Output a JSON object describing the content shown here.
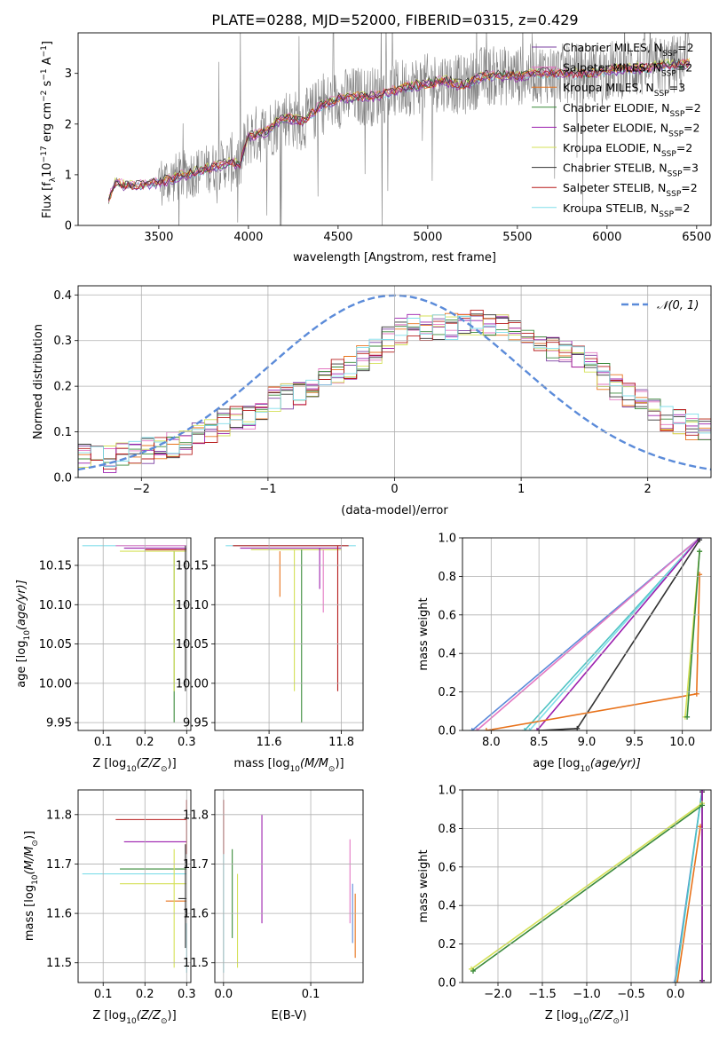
{
  "figure_title": "PLATE=0288, MJD=52000, FIBERID=0315, z=0.429",
  "colors": {
    "chabrier_miles": "#7b3fa0",
    "salpeter_miles": "#e377c2",
    "kroupa_miles": "#e8731c",
    "chabrier_elodie": "#3a8a3a",
    "salpeter_elodie": "#9b1fae",
    "kroupa_elodie": "#d4e157",
    "chabrier_stelib": "#333333",
    "salpeter_stelib": "#b71c1c",
    "kroupa_stelib": "#80deea",
    "data": "#808080",
    "normal": "#5b8bd9",
    "c1": "#5b8bd9",
    "c2": "#e377c2",
    "c3": "#4fc3c3"
  },
  "chart_data": [
    {
      "id": "spectrum",
      "type": "line",
      "title": "",
      "xlabel": "wavelength [Angstrom, rest frame]",
      "ylabel_parts": [
        "Flux [f",
        "λ",
        "10",
        "−17",
        " erg cm",
        "−2",
        " s",
        "−1",
        " A",
        "−1",
        "]"
      ],
      "xlim": [
        3050,
        6580
      ],
      "ylim": [
        0,
        3.8
      ],
      "xticks": [
        3500,
        4000,
        4500,
        5000,
        5500,
        6000,
        6500
      ],
      "yticks": [
        0,
        1,
        2,
        3
      ],
      "legend_position": "right",
      "legend": [
        {
          "main": "Chabrier MILES, N",
          "sub": "SSP",
          "tail": "=2",
          "color_key": "chabrier_miles"
        },
        {
          "main": "Salpeter MILES, N",
          "sub": "SSP",
          "tail": "=2",
          "color_key": "salpeter_miles"
        },
        {
          "main": "Kroupa MILES, N",
          "sub": "SSP",
          "tail": "=3",
          "color_key": "kroupa_miles"
        },
        {
          "main": "Chabrier ELODIE, N",
          "sub": "SSP",
          "tail": "=2",
          "color_key": "chabrier_elodie"
        },
        {
          "main": "Salpeter ELODIE, N",
          "sub": "SSP",
          "tail": "=2",
          "color_key": "salpeter_elodie"
        },
        {
          "main": "Kroupa ELODIE, N",
          "sub": "SSP",
          "tail": "=2",
          "color_key": "kroupa_elodie"
        },
        {
          "main": "Chabrier STELIB, N",
          "sub": "SSP",
          "tail": "=3",
          "color_key": "chabrier_stelib"
        },
        {
          "main": "Salpeter STELIB, N",
          "sub": "SSP",
          "tail": "=2",
          "color_key": "salpeter_stelib"
        },
        {
          "main": "Kroupa STELIB, N",
          "sub": "SSP",
          "tail": "=2",
          "color_key": "kroupa_stelib"
        }
      ],
      "data_x_range": [
        3220,
        6460
      ],
      "model_keypoints": [
        [
          3220,
          0.5
        ],
        [
          3260,
          0.88
        ],
        [
          3300,
          0.8
        ],
        [
          3400,
          0.8
        ],
        [
          3500,
          0.85
        ],
        [
          3600,
          0.95
        ],
        [
          3700,
          1.05
        ],
        [
          3800,
          1.15
        ],
        [
          3900,
          1.25
        ],
        [
          3950,
          1.2
        ],
        [
          4000,
          1.75
        ],
        [
          4100,
          1.85
        ],
        [
          4200,
          2.15
        ],
        [
          4300,
          2.05
        ],
        [
          4400,
          2.35
        ],
        [
          4500,
          2.5
        ],
        [
          4600,
          2.55
        ],
        [
          4700,
          2.55
        ],
        [
          4800,
          2.65
        ],
        [
          4900,
          2.75
        ],
        [
          5000,
          2.8
        ],
        [
          5100,
          2.85
        ],
        [
          5200,
          2.75
        ],
        [
          5300,
          2.95
        ],
        [
          5400,
          2.95
        ],
        [
          5500,
          2.95
        ],
        [
          5600,
          3.0
        ],
        [
          5700,
          3.0
        ],
        [
          5800,
          3.0
        ],
        [
          5900,
          3.0
        ],
        [
          6000,
          3.05
        ],
        [
          6100,
          3.1
        ],
        [
          6200,
          3.1
        ],
        [
          6300,
          3.15
        ],
        [
          6460,
          3.2
        ]
      ]
    },
    {
      "id": "residuals",
      "type": "line",
      "title": "",
      "xlabel": "(data-model)/error",
      "ylabel": "Normed distribution",
      "xlim": [
        -2.5,
        2.5
      ],
      "ylim": [
        0,
        0.42
      ],
      "xticks": [
        -2,
        -1,
        0,
        1,
        2
      ],
      "xtick_labels": [
        "−2",
        "−1",
        "0",
        "1",
        "2"
      ],
      "yticks": [
        0.0,
        0.1,
        0.2,
        0.3,
        0.4
      ],
      "ytick_labels": [
        "0.0",
        "0.1",
        "0.2",
        "0.3",
        "0.4"
      ],
      "legend_position": "top-right",
      "normal_label": "𝒩(0, 1)",
      "bin_edges": [
        -2.5,
        2.5
      ],
      "n_bins": 50,
      "hist_base": [
        0.05,
        0.04,
        0.04,
        0.05,
        0.06,
        0.06,
        0.07,
        0.07,
        0.08,
        0.09,
        0.1,
        0.12,
        0.13,
        0.13,
        0.15,
        0.17,
        0.18,
        0.18,
        0.2,
        0.22,
        0.23,
        0.24,
        0.26,
        0.28,
        0.3,
        0.32,
        0.33,
        0.33,
        0.33,
        0.33,
        0.34,
        0.34,
        0.34,
        0.33,
        0.32,
        0.3,
        0.3,
        0.28,
        0.28,
        0.26,
        0.25,
        0.22,
        0.2,
        0.18,
        0.17,
        0.15,
        0.13,
        0.12,
        0.11,
        0.1
      ]
    },
    {
      "id": "age_vs_Z",
      "type": "scatter",
      "title": "",
      "xlabel_parts": [
        "Z [log",
        "10",
        "(Z/Z",
        "⊙",
        ")]"
      ],
      "ylabel_parts": [
        "age  [log",
        "10",
        "(age/yr)]"
      ],
      "xlim": [
        0.04,
        0.31
      ],
      "ylim": [
        9.94,
        10.185
      ],
      "xticks": [
        0.1,
        0.2,
        0.3
      ],
      "yticks": [
        9.95,
        10.0,
        10.05,
        10.1,
        10.15
      ],
      "ytick_labels": [
        "9.95",
        "10.00",
        "10.05",
        "10.10",
        "10.15"
      ],
      "segments_h": [
        {
          "y": 10.175,
          "x0": 0.05,
          "x1": 0.3,
          "c": "kroupa_stelib"
        },
        {
          "y": 10.175,
          "x0": 0.13,
          "x1": 0.3,
          "c": "salpeter_miles"
        },
        {
          "y": 10.172,
          "x0": 0.15,
          "x1": 0.3,
          "c": "salpeter_elodie"
        },
        {
          "y": 10.17,
          "x0": 0.2,
          "x1": 0.3,
          "c": "salpeter_stelib"
        },
        {
          "y": 10.168,
          "x0": 0.14,
          "x1": 0.3,
          "c": "kroupa_elodie"
        }
      ],
      "segments_v": [
        {
          "x": 0.27,
          "y0": 9.95,
          "y1": 10.168,
          "c": "chabrier_elodie"
        },
        {
          "x": 0.27,
          "y0": 9.99,
          "y1": 10.168,
          "c": "kroupa_elodie"
        },
        {
          "x": 0.297,
          "y0": 9.99,
          "y1": 10.175,
          "c": "chabrier_stelib"
        }
      ]
    },
    {
      "id": "age_vs_mass",
      "type": "scatter",
      "title": "",
      "xlabel_parts": [
        "mass [log",
        "10",
        "(M/M",
        "⊙",
        ")]"
      ],
      "ylabel": "",
      "xlim": [
        11.45,
        11.86
      ],
      "ylim": [
        9.94,
        10.185
      ],
      "xticks": [
        11.6,
        11.8
      ],
      "yticks": [
        9.95,
        10.0,
        10.05,
        10.1,
        10.15
      ],
      "ytick_labels": [
        "9.95",
        "10.00",
        "10.05",
        "10.10",
        "10.15"
      ],
      "segments_h": [
        {
          "y": 10.175,
          "x0": 11.48,
          "x1": 11.84,
          "c": "kroupa_stelib"
        },
        {
          "y": 10.175,
          "x0": 11.5,
          "x1": 11.82,
          "c": "salpeter_stelib"
        },
        {
          "y": 10.172,
          "x0": 11.52,
          "x1": 11.8,
          "c": "salpeter_elodie"
        },
        {
          "y": 10.17,
          "x0": 11.55,
          "x1": 11.8,
          "c": "kroupa_elodie"
        }
      ],
      "segments_v": [
        {
          "x": 11.63,
          "y0": 10.11,
          "y1": 10.168,
          "c": "kroupa_miles"
        },
        {
          "x": 11.67,
          "y0": 9.99,
          "y1": 10.17,
          "c": "kroupa_elodie"
        },
        {
          "x": 11.69,
          "y0": 9.95,
          "y1": 10.17,
          "c": "chabrier_elodie"
        },
        {
          "x": 11.74,
          "y0": 10.12,
          "y1": 10.172,
          "c": "salpeter_elodie"
        },
        {
          "x": 11.75,
          "y0": 10.09,
          "y1": 10.17,
          "c": "salpeter_miles"
        },
        {
          "x": 11.79,
          "y0": 9.99,
          "y1": 10.175,
          "c": "salpeter_stelib"
        }
      ]
    },
    {
      "id": "massweight_vs_age",
      "type": "line",
      "title": "",
      "xlabel_parts": [
        "age  [log",
        "10",
        "(age/yr)]"
      ],
      "ylabel": "mass weight",
      "xlim": [
        7.7,
        10.3
      ],
      "ylim": [
        0,
        1.0
      ],
      "xticks": [
        8.0,
        8.5,
        9.0,
        9.5,
        10.0
      ],
      "xtick_labels": [
        "8.0",
        "8.5",
        "9.0",
        "9.5",
        "10.0"
      ],
      "yticks": [
        0.0,
        0.2,
        0.4,
        0.6,
        0.8,
        1.0
      ],
      "ytick_labels": [
        "0.0",
        "0.2",
        "0.4",
        "0.6",
        "0.8",
        "1.0"
      ],
      "series": [
        {
          "c": "c1",
          "points": [
            [
              7.8,
              0.0
            ],
            [
              10.18,
              1.0
            ]
          ]
        },
        {
          "c": "c2",
          "points": [
            [
              7.85,
              0.0
            ],
            [
              10.18,
              1.0
            ]
          ]
        },
        {
          "c": "c3",
          "points": [
            [
              8.35,
              0.0
            ],
            [
              10.18,
              1.0
            ]
          ]
        },
        {
          "c": "kroupa_stelib",
          "points": [
            [
              8.4,
              0.0
            ],
            [
              10.18,
              1.0
            ]
          ]
        },
        {
          "c": "salpeter_elodie",
          "points": [
            [
              8.48,
              0.0
            ],
            [
              10.18,
              1.0
            ]
          ]
        },
        {
          "c": "chabrier_stelib",
          "points": [
            [
              8.5,
              0.0
            ],
            [
              8.9,
              0.01
            ],
            [
              10.18,
              0.99
            ]
          ]
        },
        {
          "c": "kroupa_miles",
          "points": [
            [
              7.95,
              0.0
            ],
            [
              10.15,
              0.19
            ],
            [
              10.18,
              0.81
            ]
          ]
        },
        {
          "c": "kroupa_elodie",
          "points": [
            [
              10.03,
              0.07
            ],
            [
              10.18,
              0.93
            ]
          ]
        },
        {
          "c": "chabrier_elodie",
          "points": [
            [
              10.05,
              0.07
            ],
            [
              10.18,
              0.93
            ]
          ]
        }
      ]
    },
    {
      "id": "mass_vs_Z",
      "type": "scatter",
      "title": "",
      "xlabel_parts": [
        "Z [log",
        "10",
        "(Z/Z",
        "⊙",
        ")]"
      ],
      "ylabel_parts": [
        "mass [log",
        "10",
        "(M/M",
        "⊙",
        ")]"
      ],
      "xlim": [
        0.04,
        0.31
      ],
      "ylim": [
        11.46,
        11.85
      ],
      "xticks": [
        0.1,
        0.2,
        0.3
      ],
      "yticks": [
        11.5,
        11.6,
        11.7,
        11.8
      ],
      "ytick_labels": [
        "11.5",
        "11.6",
        "11.7",
        "11.8"
      ],
      "segments_h": [
        {
          "y": 11.79,
          "x0": 0.13,
          "x1": 0.3,
          "c": "salpeter_stelib"
        },
        {
          "y": 11.745,
          "x0": 0.15,
          "x1": 0.3,
          "c": "salpeter_elodie"
        },
        {
          "y": 11.69,
          "x0": 0.14,
          "x1": 0.3,
          "c": "chabrier_elodie"
        },
        {
          "y": 11.68,
          "x0": 0.05,
          "x1": 0.3,
          "c": "kroupa_stelib"
        },
        {
          "y": 11.66,
          "x0": 0.14,
          "x1": 0.3,
          "c": "kroupa_elodie"
        },
        {
          "y": 11.625,
          "x0": 0.25,
          "x1": 0.3,
          "c": "kroupa_miles"
        },
        {
          "y": 11.63,
          "x0": 0.28,
          "x1": 0.3,
          "c": "chabrier_stelib"
        }
      ],
      "segments_v": [
        {
          "x": 0.27,
          "y0": 11.49,
          "y1": 11.73,
          "c": "kroupa_elodie"
        },
        {
          "x": 0.3,
          "y0": 11.72,
          "y1": 11.83,
          "c": "salpeter_stelib"
        },
        {
          "x": 0.297,
          "y0": 11.53,
          "y1": 11.74,
          "c": "chabrier_stelib"
        },
        {
          "x": 0.3,
          "y0": 11.48,
          "y1": 11.58,
          "c": "kroupa_stelib"
        }
      ]
    },
    {
      "id": "mass_vs_EBV",
      "type": "scatter",
      "title": "",
      "xlabel": "E(B-V)",
      "ylabel": "",
      "xlim": [
        -0.01,
        0.16
      ],
      "ylim": [
        11.46,
        11.85
      ],
      "xticks": [
        0.0,
        0.1
      ],
      "xtick_labels": [
        "0.0",
        "0.1"
      ],
      "yticks": [
        11.5,
        11.6,
        11.7,
        11.8
      ],
      "ytick_labels": [
        "11.5",
        "11.6",
        "11.7",
        "11.8"
      ],
      "segments_v": [
        {
          "x": 0.0,
          "y0": 11.72,
          "y1": 11.83,
          "c": "salpeter_stelib"
        },
        {
          "x": 0.0,
          "y0": 11.48,
          "y1": 11.72,
          "c": "kroupa_stelib"
        },
        {
          "x": 0.01,
          "y0": 11.55,
          "y1": 11.73,
          "c": "chabrier_elodie"
        },
        {
          "x": 0.016,
          "y0": 11.49,
          "y1": 11.68,
          "c": "kroupa_elodie"
        },
        {
          "x": 0.044,
          "y0": 11.58,
          "y1": 11.8,
          "c": "salpeter_elodie"
        },
        {
          "x": 0.145,
          "y0": 11.58,
          "y1": 11.75,
          "c": "salpeter_miles"
        },
        {
          "x": 0.148,
          "y0": 11.54,
          "y1": 11.66,
          "c": "c1"
        },
        {
          "x": 0.151,
          "y0": 11.51,
          "y1": 11.64,
          "c": "kroupa_miles"
        }
      ]
    },
    {
      "id": "massweight_vs_Z",
      "type": "line",
      "title": "",
      "xlabel_parts": [
        "Z [log",
        "10",
        "(Z/Z",
        "⊙",
        ")]"
      ],
      "ylabel": "mass weight",
      "xlim": [
        -2.4,
        0.4
      ],
      "ylim": [
        0,
        1.0
      ],
      "xticks": [
        -2.0,
        -1.5,
        -1.0,
        -0.5,
        0.0
      ],
      "xtick_labels": [
        "−2.0",
        "−1.5",
        "−1.0",
        "−0.5",
        "0.0"
      ],
      "yticks": [
        0.0,
        0.2,
        0.4,
        0.6,
        0.8,
        1.0
      ],
      "ytick_labels": [
        "0.0",
        "0.2",
        "0.4",
        "0.6",
        "0.8",
        "1.0"
      ],
      "series": [
        {
          "c": "c1",
          "points": [
            [
              -0.01,
              0.0
            ],
            [
              0.3,
              1.0
            ]
          ]
        },
        {
          "c": "c3",
          "points": [
            [
              0.0,
              0.0
            ],
            [
              0.3,
              1.0
            ]
          ]
        },
        {
          "c": "kroupa_miles",
          "points": [
            [
              0.02,
              0.0
            ],
            [
              0.28,
              0.81
            ]
          ]
        },
        {
          "c": "chabrier_stelib",
          "points": [
            [
              0.3,
              0.01
            ],
            [
              0.3,
              0.99
            ]
          ]
        },
        {
          "c": "salpeter_elodie",
          "points": [
            [
              0.3,
              0.0
            ],
            [
              0.3,
              1.0
            ]
          ]
        },
        {
          "c": "kroupa_elodie",
          "points": [
            [
              -2.3,
              0.07
            ],
            [
              0.3,
              0.93
            ]
          ]
        },
        {
          "c": "chabrier_elodie",
          "points": [
            [
              -2.28,
              0.06
            ],
            [
              0.3,
              0.92
            ]
          ]
        }
      ]
    }
  ]
}
